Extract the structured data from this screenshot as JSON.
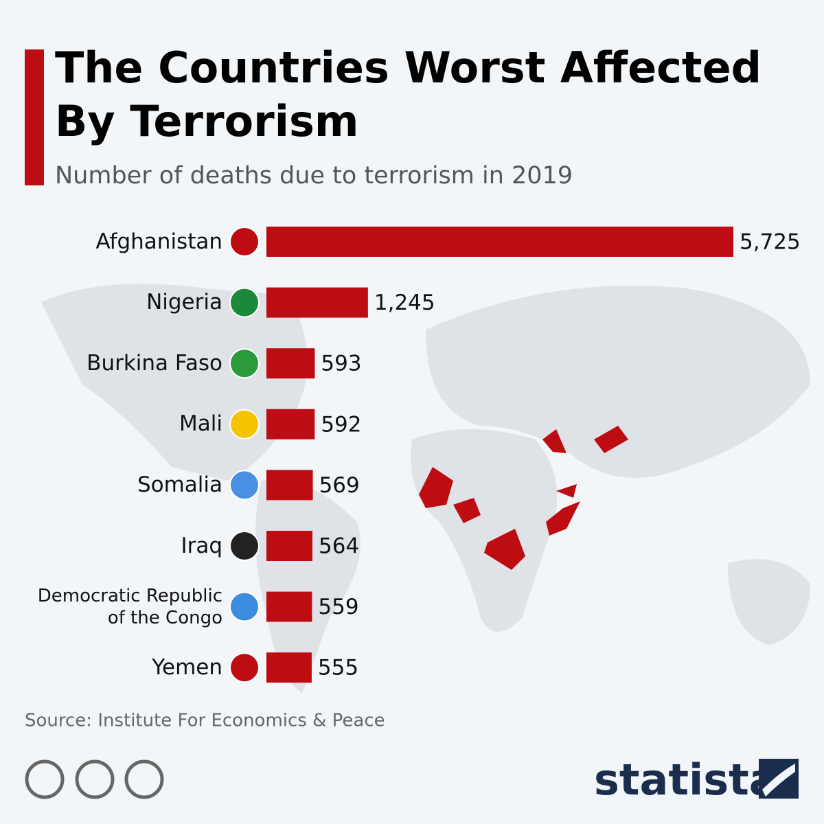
{
  "chart_data": {
    "type": "bar",
    "orientation": "horizontal",
    "title": "The Countries Worst Affected By Terrorism",
    "subtitle": "Number of deaths due to terrorism in 2019",
    "categories": [
      "Afghanistan",
      "Nigeria",
      "Burkina Faso",
      "Mali",
      "Somalia",
      "Iraq",
      "Democratic Republic\nof the Congo",
      "Yemen"
    ],
    "values": [
      5725,
      1245,
      593,
      592,
      569,
      564,
      559,
      555
    ],
    "value_labels": [
      "5,725",
      "1,245",
      "593",
      "592",
      "569",
      "564",
      "559",
      "555"
    ],
    "color": "#bd0c12",
    "source": "Source: Institute For Economics & Peace",
    "brand": "statista"
  }
}
